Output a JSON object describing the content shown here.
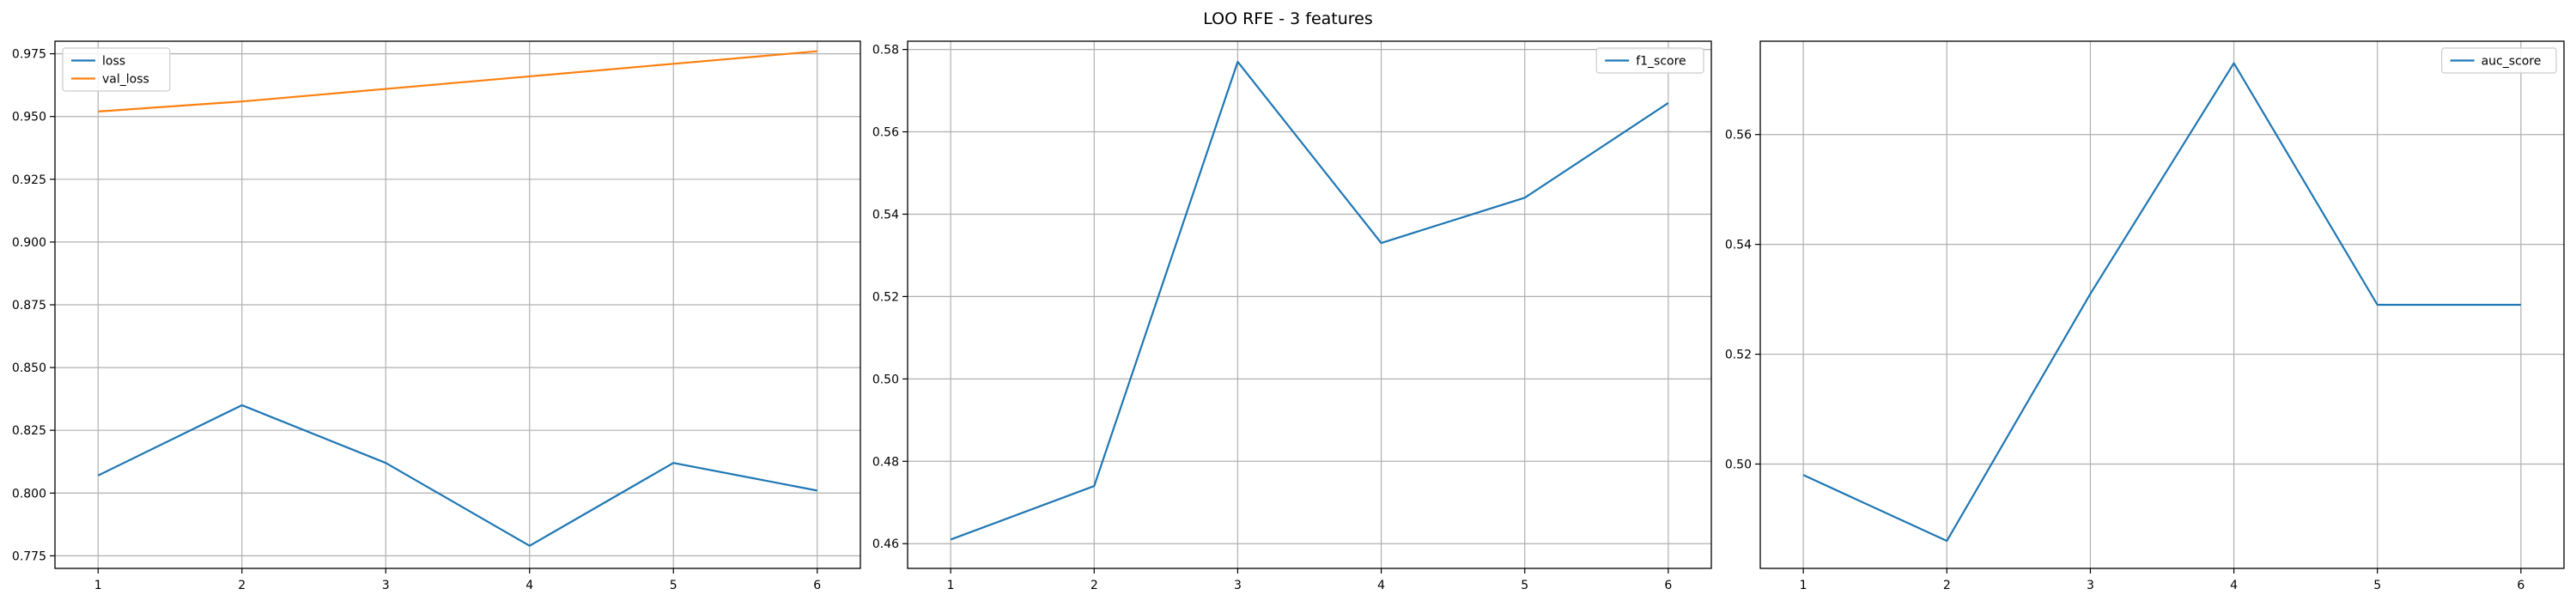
{
  "figure": {
    "title": "LOO RFE - 3 features"
  },
  "chart_data": [
    {
      "type": "line",
      "title": "",
      "xlabel": "",
      "ylabel": "",
      "x": [
        1,
        2,
        3,
        4,
        5,
        6
      ],
      "xlim": [
        0.7,
        6.3
      ],
      "ylim": [
        0.77,
        0.98
      ],
      "xticks": [
        "1",
        "2",
        "3",
        "4",
        "5",
        "6"
      ],
      "yticks": [
        "0.775",
        "0.800",
        "0.825",
        "0.850",
        "0.875",
        "0.900",
        "0.925",
        "0.950",
        "0.975"
      ],
      "grid": true,
      "legend": "upper-left",
      "series": [
        {
          "name": "loss",
          "color": "#1f77b4",
          "values": [
            0.807,
            0.835,
            0.812,
            0.779,
            0.812,
            0.801
          ]
        },
        {
          "name": "val_loss",
          "color": "#ff7f0e",
          "values": [
            0.952,
            0.956,
            0.961,
            0.966,
            0.971,
            0.976
          ]
        }
      ]
    },
    {
      "type": "line",
      "title": "",
      "xlabel": "",
      "ylabel": "",
      "x": [
        1,
        2,
        3,
        4,
        5,
        6
      ],
      "xlim": [
        0.7,
        6.3
      ],
      "ylim": [
        0.454,
        0.582
      ],
      "xticks": [
        "1",
        "2",
        "3",
        "4",
        "5",
        "6"
      ],
      "yticks": [
        "0.46",
        "0.48",
        "0.50",
        "0.52",
        "0.54",
        "0.56",
        "0.58"
      ],
      "grid": true,
      "legend": "upper-right",
      "series": [
        {
          "name": "f1_score",
          "color": "#1f77b4",
          "values": [
            0.461,
            0.474,
            0.577,
            0.533,
            0.544,
            0.567
          ]
        }
      ]
    },
    {
      "type": "line",
      "title": "",
      "xlabel": "",
      "ylabel": "",
      "x": [
        1,
        2,
        3,
        4,
        5,
        6
      ],
      "xlim": [
        0.7,
        6.3
      ],
      "ylim": [
        0.481,
        0.577
      ],
      "xticks": [
        "1",
        "2",
        "3",
        "4",
        "5",
        "6"
      ],
      "yticks": [
        "0.50",
        "0.52",
        "0.54",
        "0.56"
      ],
      "grid": true,
      "legend": "upper-right",
      "series": [
        {
          "name": "auc_score",
          "color": "#1f77b4",
          "values": [
            0.498,
            0.486,
            0.531,
            0.573,
            0.529,
            0.529
          ]
        }
      ]
    }
  ]
}
